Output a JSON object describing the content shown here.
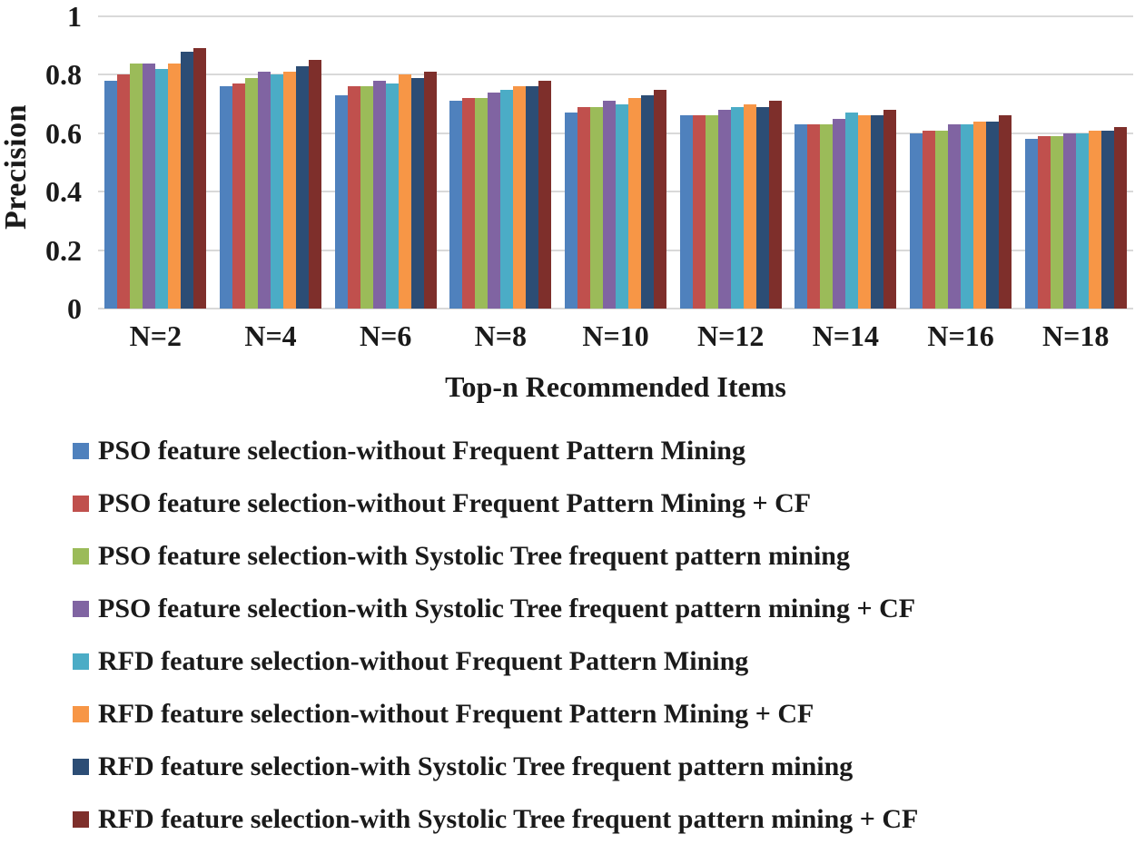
{
  "chart_data": {
    "type": "bar",
    "title": "",
    "xlabel": "Top-n Recommended Items",
    "ylabel": "Precision",
    "categories": [
      "N=2",
      "N=4",
      "N=6",
      "N=8",
      "N=10",
      "N=12",
      "N=14",
      "N=16",
      "N=18"
    ],
    "yticks": [
      1,
      0.8,
      0.6,
      0.4,
      0.2,
      0
    ],
    "ylim": [
      0,
      1
    ],
    "grid": true,
    "legend_position": "bottom",
    "series": [
      {
        "name": "PSO feature selection-without Frequent Pattern Mining",
        "color": "#4F81BD",
        "values": [
          0.78,
          0.76,
          0.73,
          0.71,
          0.67,
          0.66,
          0.63,
          0.6,
          0.58
        ]
      },
      {
        "name": "PSO feature selection-without Frequent Pattern Mining + CF",
        "color": "#C0504D",
        "values": [
          0.8,
          0.77,
          0.76,
          0.72,
          0.69,
          0.66,
          0.63,
          0.61,
          0.59
        ]
      },
      {
        "name": "PSO feature selection-with Systolic Tree frequent pattern mining",
        "color": "#9BBB59",
        "values": [
          0.84,
          0.79,
          0.76,
          0.72,
          0.69,
          0.66,
          0.63,
          0.61,
          0.59
        ]
      },
      {
        "name": "PSO feature selection-with Systolic Tree frequent pattern mining + CF",
        "color": "#8064A2",
        "values": [
          0.84,
          0.81,
          0.78,
          0.74,
          0.71,
          0.68,
          0.65,
          0.63,
          0.6
        ]
      },
      {
        "name": "RFD feature selection-without Frequent Pattern Mining",
        "color": "#4BACC6",
        "values": [
          0.82,
          0.8,
          0.77,
          0.75,
          0.7,
          0.69,
          0.67,
          0.63,
          0.6
        ]
      },
      {
        "name": "RFD  feature selection-without Frequent Pattern Mining + CF",
        "color": "#F79646",
        "values": [
          0.84,
          0.81,
          0.8,
          0.76,
          0.72,
          0.7,
          0.66,
          0.64,
          0.61
        ]
      },
      {
        "name": "RFD  feature selection-with Systolic Tree frequent pattern mining",
        "color": "#2C4D75",
        "values": [
          0.88,
          0.83,
          0.79,
          0.76,
          0.73,
          0.69,
          0.66,
          0.64,
          0.61
        ]
      },
      {
        "name": "RFD  feature selection-with Systolic Tree frequent pattern mining + CF",
        "color": "#7E2F2B",
        "values": [
          0.89,
          0.85,
          0.81,
          0.78,
          0.75,
          0.71,
          0.68,
          0.66,
          0.62
        ]
      }
    ]
  },
  "colors": {
    "gridline": "#d9d9d9",
    "text": "#1a1a1a",
    "background": "#ffffff"
  }
}
